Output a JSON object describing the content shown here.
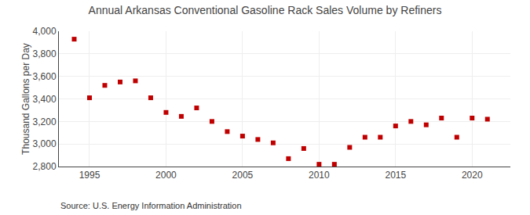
{
  "chart_data": {
    "type": "scatter",
    "title": "Annual Arkansas Conventional Gasoline Rack Sales Volume by Refiners",
    "ylabel": "Thousand Gallons per Day",
    "annotations": [
      "Source: U.S. Energy Information Administration"
    ],
    "x": [
      1994,
      1995,
      1996,
      1997,
      1998,
      1999,
      2000,
      2001,
      2002,
      2003,
      2004,
      2005,
      2006,
      2007,
      2008,
      2009,
      2010,
      2011,
      2012,
      2013,
      2014,
      2015,
      2016,
      2017,
      2018,
      2019,
      2020,
      2021
    ],
    "values": [
      3930,
      3410,
      3520,
      3550,
      3560,
      3410,
      3280,
      3245,
      3320,
      3200,
      3110,
      3070,
      3040,
      3010,
      2870,
      2960,
      2820,
      2820,
      2970,
      3060,
      3060,
      3160,
      3200,
      3170,
      3230,
      3060,
      3230,
      3220
    ],
    "color": "#c00000",
    "marker": "square",
    "xlim": [
      1993.0,
      2022.5
    ],
    "xticks": [
      1995,
      2000,
      2005,
      2010,
      2015,
      2020
    ],
    "ylim": [
      2800,
      4000
    ],
    "yticks": [
      {
        "value": 2800,
        "label": "2,800"
      },
      {
        "value": 3000,
        "label": "3,000"
      },
      {
        "value": 3200,
        "label": "3,200"
      },
      {
        "value": 3400,
        "label": "3,400"
      },
      {
        "value": 3600,
        "label": "3,600"
      },
      {
        "value": 3800,
        "label": "3,800"
      },
      {
        "value": 4000,
        "label": "4,000"
      }
    ],
    "grid": true
  }
}
